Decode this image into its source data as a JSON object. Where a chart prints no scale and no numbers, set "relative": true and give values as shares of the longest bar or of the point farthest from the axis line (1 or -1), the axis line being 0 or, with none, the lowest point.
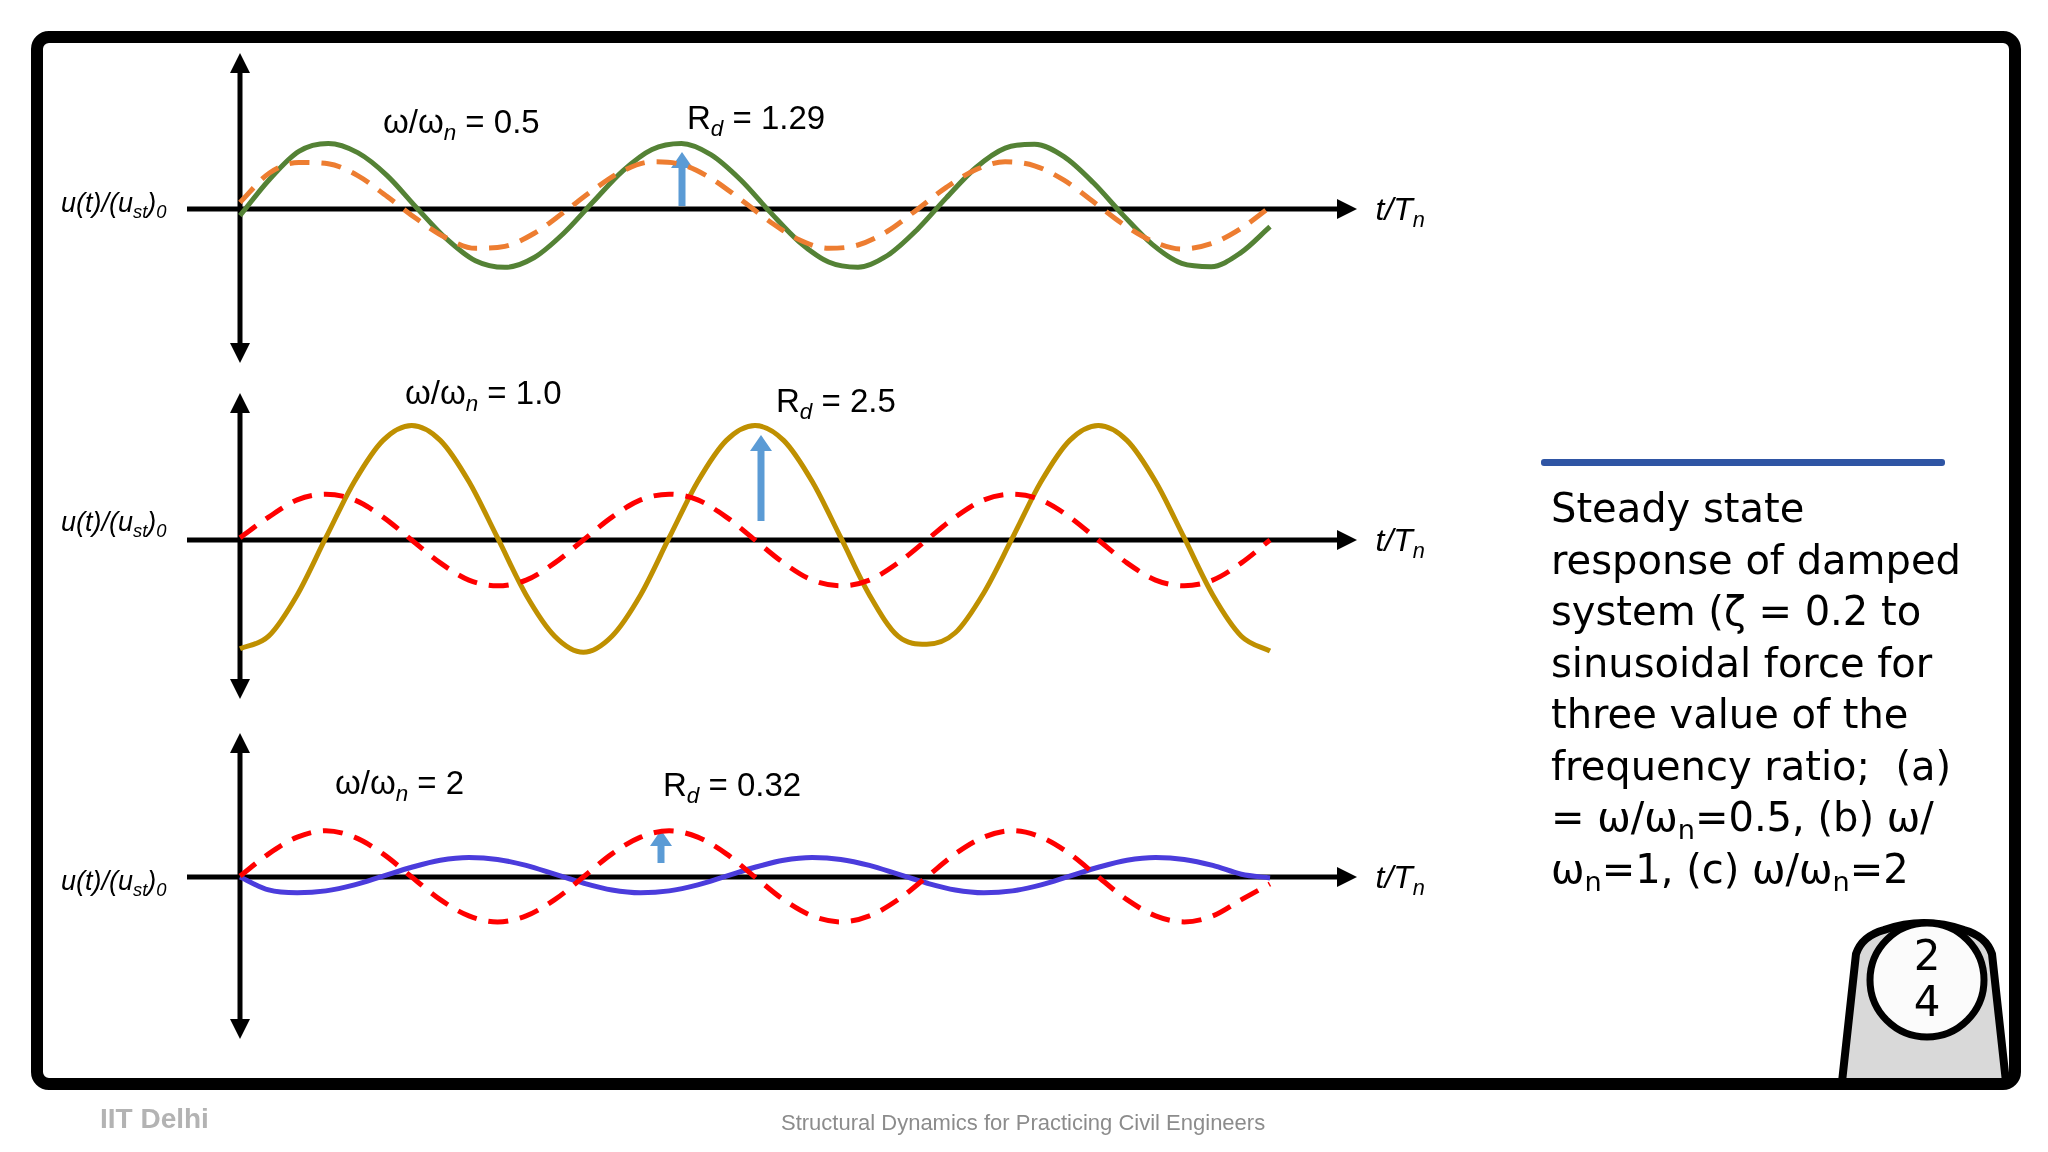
{
  "chart_data": [
    {
      "type": "line",
      "relative": true,
      "marker": "none",
      "xlabel": "t/T$_{n}$",
      "ylabel": "u(t)/(u$_{st}$)$_{0}$",
      "annotations": [
        "ω/ω$_{n}$ = 0.5",
        "R$_{d}$ = 1.29"
      ],
      "categories": [
        null,
        null,
        null,
        null,
        null,
        null,
        null,
        null,
        null,
        null,
        null,
        null,
        null,
        null,
        null,
        null,
        null,
        null,
        null,
        null,
        null,
        null,
        null,
        null,
        null,
        null,
        null,
        null,
        null,
        null,
        null,
        null,
        null,
        null,
        null,
        null
      ],
      "series": [
        {
          "color": "#ed7d31",
          "line_style": "dashed",
          "values": [
            0.1,
            0.55,
            0.71,
            0.69,
            0.51,
            0.19,
            -0.15,
            -0.44,
            -0.6,
            -0.57,
            -0.37,
            -0.05,
            0.29,
            0.58,
            0.72,
            0.68,
            0.47,
            0.15,
            -0.19,
            -0.47,
            -0.6,
            -0.55,
            -0.34,
            -0.01,
            0.33,
            0.6,
            0.72,
            0.66,
            0.44,
            0.11,
            -0.23,
            -0.49,
            -0.61,
            -0.53,
            -0.3,
            0.03
          ]
        },
        {
          "color": "#548235",
          "line_style": "solid",
          "values": [
            -0.1,
            0.45,
            0.88,
            1.0,
            0.86,
            0.51,
            0.02,
            -0.45,
            -0.79,
            -0.89,
            -0.74,
            -0.37,
            0.11,
            0.58,
            0.91,
            1.0,
            0.83,
            0.45,
            -0.04,
            -0.5,
            -0.81,
            -0.89,
            -0.71,
            -0.32,
            0.17,
            0.63,
            0.93,
            0.99,
            0.8,
            0.4,
            -0.09,
            -0.54,
            -0.83,
            -0.88,
            -0.67,
            -0.27
          ]
        }
      ]
    },
    {
      "type": "line",
      "relative": true,
      "marker": "none",
      "xlabel": "t/T$_{n}$",
      "ylabel": "u(t)/(u$_{st}$)$_{0}$",
      "annotations": [
        "ω/ω$_{n}$ = 1.0",
        "R$_{d}$ = 2.5"
      ],
      "categories": [
        null,
        null,
        null,
        null,
        null,
        null,
        null,
        null,
        null,
        null,
        null,
        null,
        null,
        null,
        null,
        null,
        null,
        null,
        null,
        null,
        null,
        null,
        null,
        null,
        null,
        null,
        null,
        null,
        null,
        null,
        null,
        null,
        null,
        null,
        null,
        null,
        null
      ],
      "series": [
        {
          "color": "#ff0000",
          "line_style": "dashed",
          "values": [
            0.02,
            0.2,
            0.35,
            0.4,
            0.35,
            0.2,
            0,
            -0.2,
            -0.35,
            -0.4,
            -0.35,
            -0.2,
            0,
            0.2,
            0.35,
            0.4,
            0.35,
            0.2,
            0,
            -0.2,
            -0.35,
            -0.4,
            -0.35,
            -0.2,
            0,
            0.2,
            0.35,
            0.4,
            0.35,
            0.2,
            0,
            -0.2,
            -0.35,
            -0.4,
            -0.35,
            -0.2,
            0
          ]
        },
        {
          "color": "#bf9000",
          "line_style": "solid",
          "values": [
            -0.95,
            -0.84,
            -0.48,
            0.02,
            0.51,
            0.87,
            1.0,
            0.87,
            0.51,
            0.02,
            -0.48,
            -0.84,
            -0.98,
            -0.84,
            -0.48,
            0.02,
            0.51,
            0.87,
            1.0,
            0.87,
            0.51,
            0.02,
            -0.48,
            -0.84,
            -0.91,
            -0.81,
            -0.46,
            0.02,
            0.51,
            0.87,
            1.0,
            0.87,
            0.51,
            0.02,
            -0.48,
            -0.84,
            -0.97
          ]
        }
      ]
    },
    {
      "type": "line",
      "relative": true,
      "marker": "none",
      "xlabel": "t/T$_{n}$",
      "ylabel": "u(t)/(u$_{st}$)$_{0}$",
      "annotations": [
        "ω/ω$_{n}$ = 2",
        "R$_{d}$ = 0.32"
      ],
      "categories": [
        null,
        null,
        null,
        null,
        null,
        null,
        null,
        null,
        null,
        null,
        null,
        null,
        null,
        null,
        null,
        null,
        null,
        null,
        null,
        null,
        null,
        null,
        null,
        null,
        null,
        null,
        null,
        null,
        null,
        null,
        null,
        null,
        null,
        null,
        null,
        null,
        null
      ],
      "series": [
        {
          "color": "#ff0000",
          "line_style": "dashed",
          "values": [
            0.02,
            0.5,
            0.86,
            1.0,
            0.86,
            0.5,
            0,
            -0.49,
            -0.84,
            -0.97,
            -0.84,
            -0.49,
            0,
            0.5,
            0.86,
            1.0,
            0.86,
            0.5,
            0,
            -0.49,
            -0.84,
            -0.97,
            -0.84,
            -0.49,
            0,
            0.5,
            0.86,
            1.0,
            0.86,
            0.5,
            0,
            -0.49,
            -0.84,
            -0.97,
            -0.84,
            -0.49,
            -0.15
          ]
        },
        {
          "color": "#4b3cdc",
          "line_style": "solid",
          "values": [
            0,
            -0.28,
            -0.34,
            -0.3,
            -0.17,
            0.02,
            0.21,
            0.36,
            0.42,
            0.38,
            0.25,
            0.06,
            -0.13,
            -0.28,
            -0.34,
            -0.3,
            -0.17,
            0.02,
            0.21,
            0.36,
            0.42,
            0.38,
            0.25,
            0.06,
            -0.13,
            -0.28,
            -0.34,
            -0.3,
            -0.17,
            0.02,
            0.21,
            0.36,
            0.42,
            0.38,
            0.25,
            0.06,
            -0.02
          ]
        }
      ]
    },
    {
      "type": "other",
      "annotations": [
        "Steady state response of damped system (ζ = 0.2 to sinusoidal force for three value of the frequency ratio;  (a) = ω/ω$_{n}$=0.5, (b) ω/ω$_{n}$=1, (c) ω/ω$_{n}$=2",
        "24",
        "IIT Delhi",
        "Structural Dynamics for Practicing Civil Engineers"
      ]
    }
  ]
}
